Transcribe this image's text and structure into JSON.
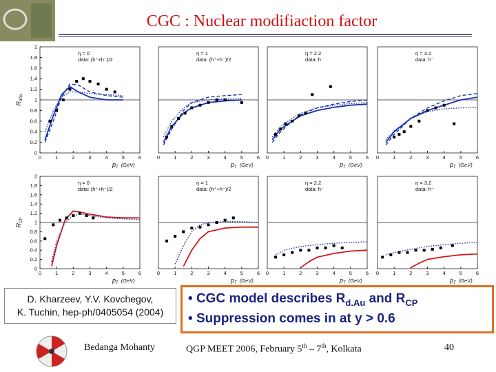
{
  "header": {
    "title": "CGC : Nuclear modifiaction factor"
  },
  "reference": {
    "lines": [
      "D. Kharzeev, Y.V. Kovchegov,",
      "K. Tuchin, hep-ph/0405054 (2004)"
    ]
  },
  "bullets": [
    {
      "bullet": "•",
      "text": "CGC model describes R",
      "sub1": "d.Au",
      "mid": "and R",
      "sub2": "CP"
    },
    {
      "bullet": "•",
      "text": "Suppression comes in at y > 0.6"
    }
  ],
  "footer": {
    "author": "Bedanga Mohanty",
    "event": "QGP MEET 2006, February 5",
    "sup1": "th",
    "event_mid": "– 7",
    "sup2": "th",
    "event_end": ", Kolkata",
    "page": "40"
  },
  "chart_data": [
    {
      "type": "line",
      "y_label": {
        "symbol": "R",
        "sub": "dAu"
      },
      "x_label": {
        "symbol": "p",
        "sub": "T",
        "unit": "(GeV)"
      },
      "annotations": [
        "η = 0",
        "data: (h⁺+h⁻)/2"
      ],
      "xlim": [
        0,
        6
      ],
      "xticks": [
        0,
        1,
        2,
        3,
        4,
        5,
        6
      ],
      "ylim": [
        0,
        2
      ],
      "yticks": [
        0,
        0.2,
        0.4,
        0.6,
        0.8,
        1,
        1.2,
        1.4,
        1.6,
        1.8,
        2
      ],
      "reference_line": 1,
      "series": [
        {
          "color": "#1b2fb0",
          "style": "solid",
          "x": [
            0.3,
            0.8,
            1.3,
            1.8,
            2.3,
            3,
            4,
            5
          ],
          "values": [
            0.25,
            0.7,
            1.1,
            1.25,
            1.15,
            1.05,
            1.0,
            1.0
          ]
        },
        {
          "color": "#1b2fb0",
          "style": "dashed",
          "x": [
            0.3,
            0.8,
            1.3,
            1.8,
            2.3,
            3,
            4,
            5
          ],
          "values": [
            0.2,
            0.6,
            1.05,
            1.3,
            1.28,
            1.15,
            1.08,
            1.05
          ]
        },
        {
          "color": "#1b2fb0",
          "style": "dotted",
          "x": [
            0.3,
            0.8,
            1.3,
            1.8,
            2.3,
            3,
            4,
            5
          ],
          "values": [
            0.4,
            0.8,
            1.05,
            1.15,
            1.15,
            1.12,
            1.1,
            1.08
          ]
        },
        {
          "color": "#000000",
          "style": "points",
          "x": [
            0.6,
            1,
            1.4,
            1.8,
            2.2,
            2.6,
            3,
            3.5,
            4,
            4.5
          ],
          "values": [
            0.6,
            0.8,
            1.0,
            1.2,
            1.35,
            1.4,
            1.35,
            1.3,
            1.2,
            1.15
          ]
        }
      ]
    },
    {
      "type": "line",
      "x_label": {
        "symbol": "p",
        "sub": "T",
        "unit": "(GeV)"
      },
      "annotations": [
        "η = 1",
        "data: (h⁺+h⁻)/2"
      ],
      "xlim": [
        0,
        6
      ],
      "xticks": [
        0,
        1,
        2,
        3,
        4,
        5,
        6
      ],
      "ylim": [
        0,
        2
      ],
      "reference_line": 1,
      "series": [
        {
          "color": "#1b2fb0",
          "style": "solid",
          "x": [
            0.3,
            0.8,
            1.5,
            2,
            3,
            4,
            5
          ],
          "values": [
            0.2,
            0.5,
            0.75,
            0.85,
            0.95,
            0.98,
            1.0
          ]
        },
        {
          "color": "#1b2fb0",
          "style": "dashed",
          "x": [
            0.3,
            0.8,
            1.5,
            2,
            3,
            4,
            5
          ],
          "values": [
            0.15,
            0.45,
            0.8,
            0.95,
            1.05,
            1.08,
            1.1
          ]
        },
        {
          "color": "#1b2fb0",
          "style": "dotted",
          "x": [
            0.3,
            0.8,
            1.5,
            2,
            3,
            4,
            5
          ],
          "values": [
            0.3,
            0.6,
            0.85,
            0.95,
            1.0,
            1.02,
            1.02
          ]
        },
        {
          "color": "#000000",
          "style": "points",
          "x": [
            0.5,
            0.8,
            1.2,
            1.6,
            2,
            2.5,
            3,
            3.5,
            4,
            5
          ],
          "values": [
            0.3,
            0.5,
            0.65,
            0.75,
            0.85,
            0.9,
            0.95,
            1.0,
            1.0,
            0.95
          ]
        }
      ]
    },
    {
      "type": "line",
      "x_label": {
        "symbol": "p",
        "sub": "T",
        "unit": "(GeV)"
      },
      "annotations": [
        "η = 2.2",
        "data: h⁻"
      ],
      "xlim": [
        0,
        6
      ],
      "xticks": [
        0,
        1,
        2,
        3,
        4,
        5,
        6
      ],
      "ylim": [
        0,
        2
      ],
      "reference_line": 1,
      "series": [
        {
          "color": "#1b2fb0",
          "style": "solid",
          "x": [
            0.3,
            0.8,
            1.5,
            2,
            3,
            4,
            5,
            6
          ],
          "values": [
            0.25,
            0.45,
            0.6,
            0.7,
            0.8,
            0.86,
            0.9,
            0.92
          ]
        },
        {
          "color": "#1b2fb0",
          "style": "dashed",
          "x": [
            0.3,
            0.8,
            1.5,
            2,
            3,
            4,
            5,
            6
          ],
          "values": [
            0.2,
            0.4,
            0.6,
            0.72,
            0.85,
            0.92,
            0.97,
            1.0
          ]
        },
        {
          "color": "#1b2fb0",
          "style": "dotted",
          "x": [
            0.3,
            0.8,
            1.5,
            2,
            3,
            4,
            5,
            6
          ],
          "values": [
            0.3,
            0.5,
            0.65,
            0.75,
            0.85,
            0.9,
            0.93,
            0.95
          ]
        },
        {
          "color": "#000000",
          "style": "points",
          "x": [
            0.5,
            0.8,
            1.1,
            1.5,
            1.9,
            2.3,
            2.7,
            3.8
          ],
          "values": [
            0.35,
            0.45,
            0.55,
            0.6,
            0.7,
            0.75,
            1.1,
            1.25
          ]
        }
      ]
    },
    {
      "type": "line",
      "x_label": {
        "symbol": "p",
        "sub": "T",
        "unit": "(GeV)"
      },
      "annotations": [
        "η = 3.2",
        "data: h⁻"
      ],
      "xlim": [
        0,
        6
      ],
      "xticks": [
        0,
        1,
        2,
        3,
        4,
        5,
        6
      ],
      "ylim": [
        0,
        2
      ],
      "reference_line": 1,
      "series": [
        {
          "color": "#1b2fb0",
          "style": "solid",
          "x": [
            0.5,
            1,
            2,
            3,
            4,
            5,
            6
          ],
          "values": [
            0.2,
            0.4,
            0.65,
            0.8,
            0.9,
            1.0,
            1.05
          ]
        },
        {
          "color": "#1b2fb0",
          "style": "dashed",
          "x": [
            0.5,
            1,
            2,
            3,
            4,
            5,
            6
          ],
          "values": [
            0.15,
            0.35,
            0.65,
            0.85,
            0.98,
            1.08,
            1.12
          ]
        },
        {
          "color": "#1b2fb0",
          "style": "dotted",
          "x": [
            0.5,
            1,
            2,
            3,
            4,
            5,
            6
          ],
          "values": [
            0.25,
            0.42,
            0.65,
            0.78,
            0.83,
            0.85,
            0.86
          ]
        },
        {
          "color": "#000000",
          "style": "points",
          "x": [
            1,
            1.3,
            1.6,
            2,
            2.5,
            3,
            3.5,
            4,
            4.6
          ],
          "values": [
            0.3,
            0.35,
            0.4,
            0.5,
            0.6,
            0.8,
            0.85,
            0.9,
            0.55
          ]
        }
      ]
    },
    {
      "type": "line",
      "y_label": {
        "symbol": "R",
        "sub": "CP"
      },
      "x_label": {
        "symbol": "p",
        "sub": "T",
        "unit": "(GeV)"
      },
      "annotations": [
        "η = 0",
        "data: (h⁺+h⁻)/2"
      ],
      "xlim": [
        0,
        6
      ],
      "xticks": [
        0,
        1,
        2,
        3,
        4,
        5,
        6
      ],
      "ylim": [
        0,
        2
      ],
      "yticks": [
        0,
        0.2,
        0.4,
        0.6,
        0.8,
        1,
        1.2,
        1.4,
        1.6,
        1.8,
        2
      ],
      "reference_line": 1,
      "series": [
        {
          "color": "#d01818",
          "style": "solid",
          "x": [
            0.7,
            1,
            1.5,
            2,
            2.5,
            3,
            4,
            5,
            6
          ],
          "values": [
            0.05,
            0.5,
            1.05,
            1.25,
            1.22,
            1.18,
            1.12,
            1.1,
            1.1
          ]
        },
        {
          "color": "#1b2fb0",
          "style": "dotted",
          "x": [
            0.7,
            1,
            1.5,
            2,
            2.5,
            3,
            4,
            5,
            6
          ],
          "values": [
            0.15,
            0.6,
            1.0,
            1.15,
            1.18,
            1.15,
            1.1,
            1.08,
            1.06
          ]
        },
        {
          "color": "#000000",
          "style": "points",
          "x": [
            0.3,
            0.8,
            1.2,
            1.6,
            2,
            2.4,
            2.8,
            3.2
          ],
          "values": [
            0.65,
            0.95,
            1.05,
            1.1,
            1.15,
            1.2,
            1.15,
            1.1
          ]
        }
      ]
    },
    {
      "type": "line",
      "x_label": {
        "symbol": "p",
        "sub": "T",
        "unit": "(GeV)"
      },
      "annotations": [
        "η = 1",
        "data: (h⁺+h⁻)/2"
      ],
      "xlim": [
        0,
        6
      ],
      "xticks": [
        0,
        1,
        2,
        3,
        4,
        5,
        6
      ],
      "ylim": [
        0,
        2
      ],
      "reference_line": 1,
      "series": [
        {
          "color": "#d01818",
          "style": "solid",
          "x": [
            1.5,
            2,
            2.5,
            3,
            4,
            5,
            6
          ],
          "values": [
            0.05,
            0.4,
            0.65,
            0.8,
            0.88,
            0.9,
            0.9
          ]
        },
        {
          "color": "#1b2fb0",
          "style": "dotted",
          "x": [
            1,
            1.5,
            2,
            2.5,
            3,
            4,
            5,
            6
          ],
          "values": [
            0.1,
            0.5,
            0.8,
            0.95,
            1.0,
            1.02,
            1.02,
            1.0
          ]
        },
        {
          "color": "#000000",
          "style": "points",
          "x": [
            0.5,
            1,
            1.5,
            2,
            2.5,
            3,
            3.5,
            4,
            4.5
          ],
          "values": [
            0.6,
            0.7,
            0.8,
            0.88,
            0.9,
            0.95,
            1.0,
            1.05,
            1.1
          ]
        }
      ]
    },
    {
      "type": "line",
      "x_label": {
        "symbol": "p",
        "sub": "T",
        "unit": "(GeV)"
      },
      "annotations": [
        "η = 2.2",
        "data: h⁻"
      ],
      "xlim": [
        0,
        6
      ],
      "xticks": [
        0,
        1,
        2,
        3,
        4,
        5,
        6
      ],
      "ylim": [
        0,
        2
      ],
      "reference_line": 1,
      "series": [
        {
          "color": "#d01818",
          "style": "solid",
          "x": [
            2,
            2.5,
            3,
            4,
            5,
            6
          ],
          "values": [
            0.02,
            0.15,
            0.25,
            0.33,
            0.38,
            0.4
          ]
        },
        {
          "color": "#1b2fb0",
          "style": "dotted",
          "x": [
            0.5,
            1,
            2,
            3,
            4,
            5,
            6
          ],
          "values": [
            0.3,
            0.4,
            0.48,
            0.52,
            0.55,
            0.57,
            0.58
          ]
        },
        {
          "color": "#000000",
          "style": "points",
          "x": [
            0.5,
            1,
            1.5,
            2,
            2.5,
            3,
            3.5,
            4,
            4.5
          ],
          "values": [
            0.25,
            0.3,
            0.35,
            0.4,
            0.4,
            0.45,
            0.45,
            0.5,
            0.45
          ]
        }
      ]
    },
    {
      "type": "line",
      "x_label": {
        "symbol": "p",
        "sub": "T",
        "unit": "(GeV)"
      },
      "annotations": [
        "η = 3.2",
        "data: h⁻"
      ],
      "xlim": [
        0,
        6
      ],
      "xticks": [
        0,
        1,
        2,
        3,
        4,
        5,
        6
      ],
      "ylim": [
        0,
        2
      ],
      "reference_line": 1,
      "series": [
        {
          "color": "#d01818",
          "style": "solid",
          "x": [
            2,
            2.5,
            3,
            4,
            5,
            6
          ],
          "values": [
            0.02,
            0.12,
            0.2,
            0.26,
            0.3,
            0.32
          ]
        },
        {
          "color": "#1b2fb0",
          "style": "dotted",
          "x": [
            0.5,
            1,
            2,
            3,
            4,
            5,
            6
          ],
          "values": [
            0.3,
            0.35,
            0.42,
            0.48,
            0.52,
            0.55,
            0.57
          ]
        },
        {
          "color": "#000000",
          "style": "points",
          "x": [
            0.3,
            0.8,
            1.3,
            1.8,
            2.3,
            2.8,
            3.3,
            3.8,
            4.5
          ],
          "values": [
            0.25,
            0.3,
            0.35,
            0.35,
            0.4,
            0.4,
            0.42,
            0.45,
            0.5
          ]
        }
      ]
    }
  ]
}
